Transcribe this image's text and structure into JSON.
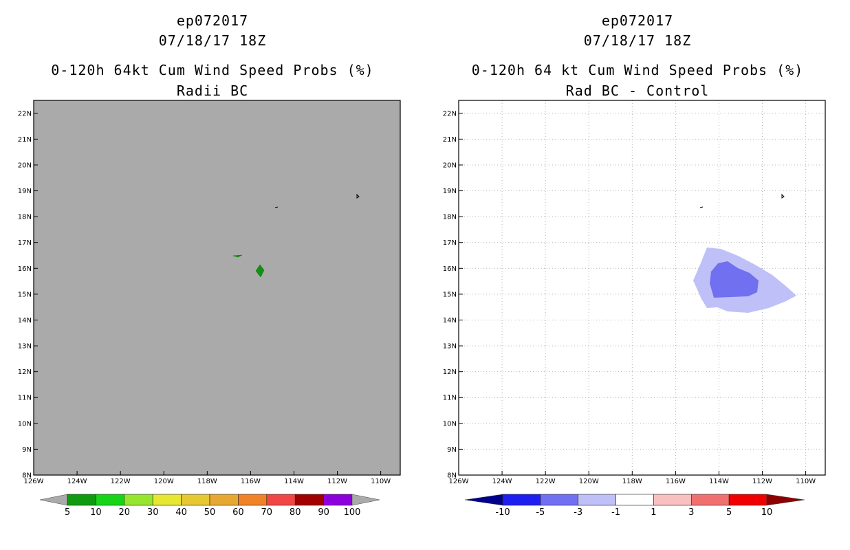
{
  "panels": [
    {
      "id": "left",
      "storm_id": "ep072017",
      "datetime": "07/18/17 18Z",
      "product_title": "0-120h 64kt Cum Wind Speed Probs (%)",
      "subtitle": "Radii BC",
      "map_background": "#aaaaaa",
      "legend": {
        "labels": [
          "5",
          "10",
          "20",
          "30",
          "40",
          "50",
          "60",
          "70",
          "80",
          "90",
          "100"
        ],
        "colors": [
          "#aaaaaa",
          "#0f9a0f",
          "#16d416",
          "#96e62e",
          "#e6e633",
          "#e6c832",
          "#e6a832",
          "#f08228",
          "#f04646",
          "#a00000",
          "#8c00dc",
          "#aaaaaa"
        ]
      }
    },
    {
      "id": "right",
      "storm_id": "ep072017",
      "datetime": "07/18/17 18Z",
      "product_title": "0-120h 64 kt Cum Wind Speed Probs (%)",
      "subtitle": "Rad BC - Control",
      "map_background": "#ffffff",
      "legend": {
        "labels": [
          "-10",
          "-5",
          "-3",
          "-1",
          "1",
          "3",
          "5",
          "10"
        ],
        "colors": [
          "#00008c",
          "#1e1ef0",
          "#7070f0",
          "#c0c0f8",
          "#ffffff",
          "#f8c0c0",
          "#f07070",
          "#f00000",
          "#8c0000"
        ]
      }
    }
  ],
  "axes": {
    "lat_labels": [
      "8N",
      "9N",
      "10N",
      "11N",
      "12N",
      "13N",
      "14N",
      "15N",
      "16N",
      "17N",
      "18N",
      "19N",
      "20N",
      "21N",
      "22N"
    ],
    "lon_labels": [
      "126W",
      "124W",
      "122W",
      "120W",
      "118W",
      "116W",
      "114W",
      "112W",
      "110W"
    ],
    "lat_range": [
      8,
      22.5
    ],
    "lon_range": [
      -126,
      -109.1
    ]
  }
}
